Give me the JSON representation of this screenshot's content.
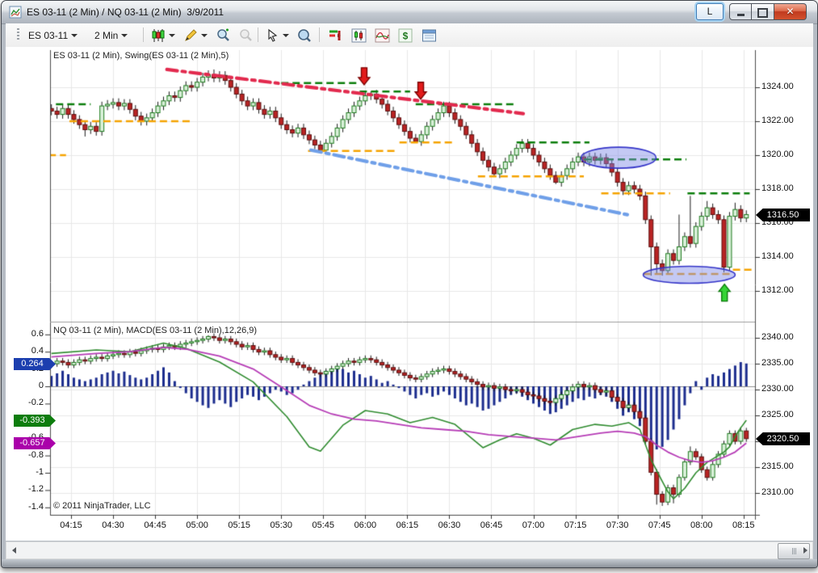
{
  "window": {
    "title": "ES 03-11 (2 Min) / NQ 03-11 (2 Min)  3/9/2011",
    "link_button_label": "L"
  },
  "toolbar": {
    "instrument": "ES 03-11",
    "interval": "2 Min"
  },
  "panels": {
    "upper_label": "ES 03-11 (2 Min), Swing(ES 03-11 (2 Min),5)",
    "lower_label": "NQ 03-11 (2 Min), MACD(ES 03-11 (2 Min),12,26,9)",
    "copyright": "© 2011 NinjaTrader, LLC"
  },
  "markers": {
    "es_last": "1316.50",
    "nq_last": "2320.50",
    "macd_hist": "0.264",
    "macd_line": "-0.393",
    "macd_signal": "-0.657"
  },
  "colors": {
    "up_fill": "#d9f0d9",
    "up_stroke": "#1c7a1c",
    "down_fill": "#b92323",
    "down_stroke": "#5a0f0f",
    "wick": "#1a1a1a",
    "hist": "#1c2d8e",
    "macd": "#2f8b2f",
    "signal": "#b63cb6",
    "swing_high": "#0a7d0a",
    "swing_low": "#f5a300",
    "trend_red": "#e22a4e",
    "trend_blue": "#6f9fe8",
    "ellipse_fill": "rgba(125,135,230,0.45)",
    "ellipse_stroke": "#3434c8",
    "arrow_down": "#e31b1b",
    "arrow_down_edge": "#7a0000",
    "arrow_up": "#35d435",
    "arrow_up_edge": "#0a7a0a",
    "flag_black": "#000000",
    "flag_hist": "#1c3faf",
    "flag_macd": "#0e7d0e",
    "flag_signal": "#aa00aa",
    "grid": "#e7e7e7",
    "axis": "#4a4a4a",
    "zero_line": "#8f8f8f",
    "divider": "#9e9e9e"
  },
  "chart_data": {
    "type": "candlestick",
    "date": "3/9/2011",
    "bar_interval_min": 2,
    "first_bar_time": "04:08",
    "time_ticks": [
      "04:15",
      "04:30",
      "04:45",
      "05:00",
      "05:15",
      "05:30",
      "05:45",
      "06:00",
      "06:15",
      "06:30",
      "06:45",
      "07:00",
      "07:15",
      "07:30",
      "07:45",
      "08:00",
      "08:15"
    ],
    "upper": {
      "symbol": "ES 03-11",
      "indicator": "Swing(ES 03-11 (2 Min),5)",
      "y_ticks": [
        1324,
        1322,
        1320,
        1318,
        1316,
        1314,
        1312
      ],
      "last_price": 1316.5,
      "first_open": 1322.75,
      "default_wick": 0.25,
      "closes": [
        1322.6,
        1322.4,
        1322.75,
        1322.4,
        1322.1,
        1321.8,
        1321.5,
        1321.7,
        1321.4,
        1322.9,
        1323.0,
        1323.1,
        1322.9,
        1323.05,
        1322.7,
        1322.3,
        1322.0,
        1322.2,
        1322.5,
        1322.9,
        1323.2,
        1323.5,
        1323.4,
        1323.8,
        1324.1,
        1324.0,
        1324.3,
        1324.6,
        1324.75,
        1324.55,
        1324.7,
        1324.4,
        1324.0,
        1323.6,
        1323.2,
        1322.9,
        1323.1,
        1322.7,
        1322.4,
        1322.6,
        1322.2,
        1321.8,
        1321.5,
        1321.3,
        1321.6,
        1321.2,
        1320.9,
        1320.6,
        1320.3,
        1320.7,
        1321.1,
        1321.6,
        1322.1,
        1322.5,
        1322.9,
        1323.2,
        1323.5,
        1323.6,
        1323.3,
        1323.0,
        1322.6,
        1322.2,
        1321.8,
        1321.4,
        1321.0,
        1320.8,
        1321.2,
        1321.7,
        1322.1,
        1322.5,
        1322.9,
        1322.5,
        1322.1,
        1321.7,
        1321.2,
        1320.7,
        1320.2,
        1319.7,
        1319.3,
        1318.9,
        1319.2,
        1319.6,
        1320.0,
        1320.4,
        1320.7,
        1320.4,
        1320.0,
        1319.6,
        1319.2,
        1318.8,
        1318.4,
        1318.8,
        1319.2,
        1319.6,
        1319.9,
        1319.6,
        1319.9,
        1319.7,
        1319.85,
        1319.5,
        1319.0,
        1318.4,
        1317.9,
        1318.2,
        1318.0,
        1317.6,
        1316.2,
        1314.6,
        1313.6,
        1313.2,
        1314.2,
        1313.8,
        1314.6,
        1315.2,
        1314.8,
        1315.8,
        1316.4,
        1316.9,
        1316.5,
        1316.2,
        1313.4,
        1316.4,
        1316.8,
        1316.3,
        1316.5
      ],
      "wick_overrides": {
        "6": [
          null,
          1321.1
        ],
        "8": [
          null,
          1321.15
        ],
        "28": [
          1325.0,
          null
        ],
        "29": [
          1325.05,
          null
        ],
        "30": [
          1324.95,
          null
        ],
        "48": [
          null,
          1320.25
        ],
        "57": [
          1323.75,
          null
        ],
        "65": [
          null,
          1320.75
        ],
        "79": [
          null,
          1318.75
        ],
        "84": [
          1320.95,
          null
        ],
        "90": [
          null,
          1318.3
        ],
        "107": [
          null,
          1312.9
        ],
        "108": [
          null,
          1313.0
        ],
        "109": [
          null,
          1312.9
        ],
        "110": [
          null,
          1313.05
        ],
        "112": [
          1316.5,
          null
        ],
        "114": [
          1317.6,
          null
        ],
        "117": [
          1317.3,
          null
        ],
        "120": [
          null,
          1313.1
        ],
        "121": [
          null,
          1313.2
        ],
        "122": [
          1317.2,
          null
        ]
      },
      "swing_highs": [
        [
          1323.0,
          0.8,
          7
        ],
        [
          1324.25,
          41,
          55
        ],
        [
          1323.75,
          55,
          64
        ],
        [
          1323.0,
          65,
          83
        ],
        [
          1320.75,
          83,
          96
        ],
        [
          1319.75,
          95,
          113.3
        ],
        [
          1317.75,
          113.5,
          124.6
        ]
      ],
      "swing_lows": [
        [
          1322.0,
          3.2,
          25
        ],
        [
          1320.0,
          -0.5,
          2.6
        ],
        [
          1320.25,
          45.8,
          61.4
        ],
        [
          1320.75,
          62.1,
          71.5
        ],
        [
          1318.75,
          76.1,
          95
        ],
        [
          1317.75,
          98.1,
          110.4
        ],
        [
          1313.0,
          105.6,
          121.6
        ],
        [
          1313.25,
          121.6,
          125.4
        ]
      ],
      "trendlines": [
        {
          "color_key": "trend_red",
          "b1": 20.6,
          "p1": 1325.05,
          "b2": 84.2,
          "p2": 1322.45
        },
        {
          "color_key": "trend_blue",
          "b1": 46.3,
          "p1": 1320.3,
          "b2": 103.4,
          "p2": 1316.45
        }
      ],
      "arrows": [
        {
          "dir": "down",
          "bar": 55.8,
          "price": 1324.15
        },
        {
          "dir": "down",
          "bar": 65.9,
          "price": 1323.3
        },
        {
          "dir": "up",
          "bar": 120.1,
          "price": 1312.4
        }
      ],
      "ellipses": [
        {
          "bar": 101.2,
          "price": 1319.85,
          "rx_bars": 6.7,
          "ry_points": 0.62
        },
        {
          "bar": 113.8,
          "price": 1312.95,
          "rx_bars": 8.2,
          "ry_points": 0.5
        }
      ]
    },
    "lower": {
      "symbol": "NQ 03-11",
      "indicator": "MACD(ES 03-11 (2 Min),12,26,9)",
      "right_ticks": [
        2340,
        2335,
        2330,
        2325,
        2320,
        2315,
        2310
      ],
      "left_ticks": [
        0.6,
        0.4,
        0.2,
        0,
        -0.2,
        -0.4,
        -0.6,
        -0.8,
        -1,
        -1.2,
        -1.4
      ],
      "last_price": 2320.5,
      "first_open": 2334.75,
      "default_wick": 0.6,
      "closes": [
        2335.0,
        2335.5,
        2335.25,
        2334.75,
        2335.25,
        2335.75,
        2335.5,
        2336.0,
        2336.25,
        2336.0,
        2336.5,
        2336.75,
        2337.0,
        2336.75,
        2337.25,
        2337.0,
        2337.5,
        2337.75,
        2338.0,
        2337.75,
        2338.25,
        2338.5,
        2338.25,
        2338.75,
        2339.0,
        2339.25,
        2339.5,
        2339.75,
        2340.25,
        2340.0,
        2339.5,
        2339.75,
        2339.25,
        2338.75,
        2338.25,
        2338.5,
        2337.75,
        2337.25,
        2337.5,
        2336.75,
        2336.25,
        2335.75,
        2336.0,
        2335.25,
        2334.75,
        2334.25,
        2333.75,
        2333.25,
        2333.0,
        2333.5,
        2334.0,
        2334.5,
        2335.0,
        2335.5,
        2335.25,
        2335.75,
        2336.0,
        2335.75,
        2335.25,
        2334.75,
        2334.25,
        2333.75,
        2333.25,
        2332.75,
        2332.25,
        2332.0,
        2332.5,
        2333.0,
        2333.5,
        2333.75,
        2334.0,
        2333.5,
        2333.0,
        2332.5,
        2332.0,
        2331.5,
        2331.0,
        2330.5,
        2330.75,
        2330.25,
        2330.5,
        2330.0,
        2329.75,
        2330.0,
        2329.5,
        2329.0,
        2328.75,
        2328.25,
        2327.75,
        2327.5,
        2328.25,
        2329.0,
        2329.75,
        2330.5,
        2331.0,
        2330.5,
        2330.75,
        2330.0,
        2329.5,
        2329.75,
        2328.5,
        2327.75,
        2326.5,
        2327.0,
        2325.75,
        2324.5,
        2320.0,
        2314.0,
        2309.75,
        2308.25,
        2311.0,
        2309.75,
        2313.0,
        2316.0,
        2318.0,
        2317.0,
        2314.5,
        2313.0,
        2315.5,
        2317.5,
        2319.5,
        2321.5,
        2320.0,
        2322.0,
        2320.5
      ],
      "wick_overrides": {
        "28": [
          2340.5,
          null
        ],
        "108": [
          null,
          2307.75
        ],
        "109": [
          null,
          2307.5
        ],
        "111": [
          null,
          2308.0
        ],
        "114": [
          2319.0,
          null
        ],
        "123": [
          2322.75,
          null
        ]
      },
      "histogram": [
        0.12,
        0.15,
        0.18,
        0.14,
        0.1,
        0.08,
        0.06,
        0.08,
        0.1,
        0.14,
        0.16,
        0.18,
        0.15,
        0.17,
        0.13,
        0.1,
        0.08,
        0.1,
        0.14,
        0.18,
        0.22,
        0.16,
        0.06,
        -0.02,
        -0.08,
        -0.14,
        -0.18,
        -0.22,
        -0.25,
        -0.2,
        -0.16,
        -0.2,
        -0.24,
        -0.18,
        -0.14,
        -0.1,
        -0.12,
        -0.16,
        -0.12,
        -0.08,
        -0.04,
        -0.06,
        -0.1,
        -0.08,
        -0.04,
        0.02,
        0.06,
        0.1,
        0.14,
        0.18,
        0.2,
        0.22,
        0.2,
        0.16,
        0.18,
        0.14,
        0.1,
        0.12,
        0.08,
        0.04,
        0.06,
        0.02,
        -0.02,
        -0.06,
        -0.1,
        -0.14,
        -0.1,
        -0.08,
        -0.12,
        -0.1,
        -0.06,
        -0.1,
        -0.14,
        -0.18,
        -0.22,
        -0.2,
        -0.24,
        -0.28,
        -0.26,
        -0.22,
        -0.18,
        -0.14,
        -0.1,
        -0.08,
        -0.12,
        -0.16,
        -0.2,
        -0.24,
        -0.28,
        -0.32,
        -0.3,
        -0.26,
        -0.22,
        -0.18,
        -0.14,
        -0.16,
        -0.12,
        -0.14,
        -0.1,
        -0.12,
        -0.18,
        -0.26,
        -0.34,
        -0.3,
        -0.38,
        -0.46,
        -0.56,
        -0.66,
        -0.73,
        -0.7,
        -0.62,
        -0.5,
        -0.38,
        -0.22,
        -0.08,
        0.06,
        -0.04,
        0.1,
        0.14,
        0.12,
        0.16,
        0.2,
        0.24,
        0.28,
        0.264
      ],
      "hist_last": 0.264,
      "macd_last": -0.393,
      "signal_last": -0.657,
      "macd_points": [
        [
          0,
          0.38
        ],
        [
          8,
          0.42
        ],
        [
          14,
          0.4
        ],
        [
          20,
          0.5
        ],
        [
          24,
          0.44
        ],
        [
          30,
          0.28
        ],
        [
          36,
          0.05
        ],
        [
          42,
          -0.35
        ],
        [
          46,
          -0.7
        ],
        [
          48,
          -0.75
        ],
        [
          52,
          -0.45
        ],
        [
          56,
          -0.28
        ],
        [
          60,
          -0.32
        ],
        [
          64,
          -0.42
        ],
        [
          68,
          -0.36
        ],
        [
          72,
          -0.44
        ],
        [
          77,
          -0.71
        ],
        [
          80,
          -0.62
        ],
        [
          83,
          -0.55
        ],
        [
          86,
          -0.6
        ],
        [
          89,
          -0.68
        ],
        [
          93,
          -0.5
        ],
        [
          97,
          -0.44
        ],
        [
          100,
          -0.46
        ],
        [
          103,
          -0.42
        ],
        [
          105,
          -0.5
        ],
        [
          107,
          -0.85
        ],
        [
          109,
          -1.1
        ],
        [
          110,
          -1.22
        ],
        [
          111,
          -1.3
        ],
        [
          113,
          -1.18
        ],
        [
          115,
          -1.0
        ],
        [
          117,
          -0.88
        ],
        [
          119,
          -0.8
        ],
        [
          120,
          -0.76
        ],
        [
          121,
          -0.7
        ],
        [
          122,
          -0.58
        ],
        [
          123,
          -0.48
        ],
        [
          124,
          -0.393
        ]
      ],
      "signal_points": [
        [
          0,
          0.34
        ],
        [
          8,
          0.38
        ],
        [
          14,
          0.4
        ],
        [
          20,
          0.45
        ],
        [
          24,
          0.43
        ],
        [
          30,
          0.35
        ],
        [
          36,
          0.2
        ],
        [
          42,
          -0.05
        ],
        [
          46,
          -0.22
        ],
        [
          50,
          -0.32
        ],
        [
          54,
          -0.38
        ],
        [
          58,
          -0.4
        ],
        [
          62,
          -0.44
        ],
        [
          66,
          -0.48
        ],
        [
          70,
          -0.5
        ],
        [
          74,
          -0.52
        ],
        [
          78,
          -0.56
        ],
        [
          82,
          -0.58
        ],
        [
          86,
          -0.6
        ],
        [
          90,
          -0.62
        ],
        [
          94,
          -0.58
        ],
        [
          98,
          -0.54
        ],
        [
          101,
          -0.52
        ],
        [
          104,
          -0.54
        ],
        [
          106,
          -0.58
        ],
        [
          108,
          -0.68
        ],
        [
          110,
          -0.76
        ],
        [
          112,
          -0.82
        ],
        [
          114,
          -0.86
        ],
        [
          116,
          -0.88
        ],
        [
          118,
          -0.86
        ],
        [
          120,
          -0.82
        ],
        [
          122,
          -0.76
        ],
        [
          124,
          -0.657
        ]
      ]
    }
  }
}
